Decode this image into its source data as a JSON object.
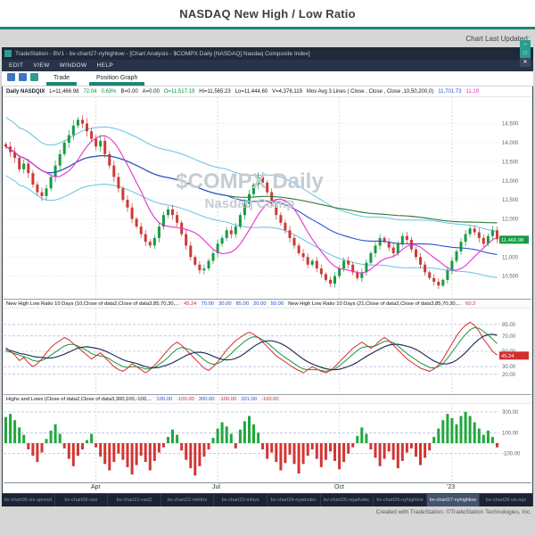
{
  "page": {
    "title": "NASDAQ New High / Low Ratio",
    "last_updated_label": "Chart Last Updated:",
    "credit": "Created with TradeStation. ©TradeStation Technologies, Inc."
  },
  "window": {
    "title": "TradeStation - BV1 - bv-chart27-nyhighlow - [Chart Analysis - $COMPX Daily [NASDAQ] Nasdaq Composite Index]",
    "controls": [
      {
        "name": "minimize",
        "glyph": "–"
      },
      {
        "name": "maximize",
        "glyph": "□"
      },
      {
        "name": "close",
        "glyph": "✕"
      }
    ]
  },
  "menu": {
    "items": [
      "EDIT",
      "VIEW",
      "WINDOW",
      "HELP"
    ]
  },
  "toolbar": {
    "tabs": [
      {
        "label": "Trade"
      },
      {
        "label": "Position Graph"
      }
    ]
  },
  "info_bar": {
    "segments": [
      {
        "text": "Daily NASDQIX",
        "color": "#15181c",
        "bold": true
      },
      {
        "text": "L=11,466.98",
        "color": "#15181c"
      },
      {
        "text": "72.04",
        "color": "#0e8f3e"
      },
      {
        "text": "0.63%",
        "color": "#0e8f3e"
      },
      {
        "text": "B=0.00",
        "color": "#15181c"
      },
      {
        "text": "A=0.00",
        "color": "#15181c"
      },
      {
        "text": "O=11,517.19",
        "color": "#0e8f3e"
      },
      {
        "text": "Hi=11,565.23",
        "color": "#15181c"
      },
      {
        "text": "Lo=11,444.60",
        "color": "#15181c"
      },
      {
        "text": "V=4,376,119",
        "color": "#15181c"
      },
      {
        "text": "Mov Avg 3 Lines ( Close , Close , Close ,10,50,200,0)",
        "color": "#15181c"
      },
      {
        "text": "11,701.73",
        "color": "#2b50d8"
      },
      {
        "text": "11,19",
        "color": "#e531c8"
      }
    ]
  },
  "pane2_header": {
    "segments": [
      {
        "text": "New High Low Ratio 10 Days (10,Close of data2,Close of data3,85,70,30,...",
        "color": "#15181c"
      },
      {
        "text": "45.24",
        "color": "#d03030"
      },
      {
        "text": "70.00",
        "color": "#2b50d8"
      },
      {
        "text": "30.00",
        "color": "#2b50d8"
      },
      {
        "text": "85.00",
        "color": "#2b50d8"
      },
      {
        "text": "20.00",
        "color": "#2b50d8"
      },
      {
        "text": "50.00",
        "color": "#2b50d8"
      },
      {
        "text": "New High Low Ratio 10 Days (21,Close of data2,Close of data3,85,70,30,...",
        "color": "#15181c"
      },
      {
        "text": "60.2",
        "color": "#d03030"
      }
    ]
  },
  "pane3_header": {
    "segments": [
      {
        "text": "Highs and Lows (Close of data2,Close of data3,300,100,-100,...",
        "color": "#15181c"
      },
      {
        "text": "100.00",
        "color": "#2b50d8"
      },
      {
        "text": "-100.00",
        "color": "#d03030"
      },
      {
        "text": "300.00",
        "color": "#2b50d8"
      },
      {
        "text": "-100.00",
        "color": "#d03030"
      },
      {
        "text": "101.00",
        "color": "#2b50d8"
      },
      {
        "text": "-100.00",
        "color": "#d03030"
      }
    ]
  },
  "chart_data": [
    {
      "type": "candlestick",
      "title": "$COMPX Daily - Nasdaq Composite Index",
      "watermark_line1": "$COMPX Daily",
      "watermark_line2": "Nasdaq Comp",
      "x_labels": [
        {
          "label": "Apr",
          "index": 20
        },
        {
          "label": "Jul",
          "index": 47
        },
        {
          "label": "Oct",
          "index": 74
        },
        {
          "label": "'23",
          "index": 99
        }
      ],
      "ylim": [
        10000,
        15100
      ],
      "y_ticks": [
        14500,
        14000,
        13500,
        13000,
        12500,
        12000,
        11500,
        11000,
        10500
      ],
      "closes": [
        13900,
        13750,
        13600,
        13300,
        13450,
        13200,
        12900,
        12700,
        12600,
        12800,
        13100,
        13400,
        13700,
        14000,
        14200,
        14450,
        14600,
        14500,
        14300,
        14100,
        13900,
        14050,
        13700,
        13400,
        13100,
        12800,
        12500,
        12300,
        12000,
        11800,
        11600,
        11400,
        11300,
        11500,
        11800,
        12100,
        12250,
        12100,
        11900,
        11600,
        11300,
        11000,
        10800,
        10650,
        10700,
        10900,
        11100,
        11350,
        11500,
        11700,
        11600,
        11800,
        12100,
        12400,
        12650,
        12900,
        13100,
        12950,
        12700,
        12400,
        12100,
        11900,
        11700,
        11500,
        11300,
        11100,
        11000,
        10800,
        10900,
        10700,
        10550,
        10400,
        10300,
        10500,
        10700,
        10900,
        10800,
        10600,
        10450,
        10600,
        10850,
        11100,
        11300,
        11500,
        11400,
        11250,
        11100,
        11350,
        11550,
        11450,
        11200,
        11000,
        10800,
        10600,
        10450,
        10350,
        10250,
        10400,
        10650,
        10900,
        11150,
        11400,
        11600,
        11750,
        11650,
        11500,
        11350,
        11550,
        11700,
        11467
      ],
      "ma_windows": [
        10,
        50,
        200
      ],
      "ma_colors": [
        "#e531c8",
        "#2b50d8",
        "#3a7d44"
      ],
      "band_color": "#62c3e8",
      "up_color": "#169b42",
      "down_color": "#cc3a35",
      "last_price_label": "11,466.98"
    },
    {
      "type": "line",
      "title": "New High Low Ratio 10 Days",
      "ylim": [
        0,
        100
      ],
      "ref_lines": [
        85,
        70,
        50,
        30,
        20
      ],
      "series": [
        {
          "name": "NH/NL Ratio (10)",
          "color": "#d03030",
          "values": [
            55,
            50,
            45,
            38,
            42,
            35,
            30,
            34,
            40,
            48,
            55,
            60,
            64,
            68,
            65,
            60,
            55,
            50,
            45,
            40,
            44,
            48,
            42,
            36,
            30,
            26,
            24,
            28,
            34,
            30,
            26,
            22,
            26,
            32,
            38,
            45,
            52,
            58,
            62,
            58,
            52,
            46,
            40,
            34,
            28,
            25,
            30,
            36,
            44,
            52,
            58,
            64,
            68,
            72,
            75,
            72,
            68,
            62,
            56,
            50,
            44,
            40,
            36,
            32,
            28,
            25,
            22,
            26,
            30,
            27,
            24,
            22,
            25,
            30,
            36,
            42,
            48,
            54,
            58,
            62,
            58,
            54,
            58,
            64,
            68,
            64,
            58,
            52,
            46,
            40,
            36,
            32,
            28,
            26,
            24,
            27,
            32,
            40,
            50,
            60,
            70,
            78,
            84,
            88,
            84,
            76,
            66,
            58,
            50,
            45
          ]
        },
        {
          "name": "NH/NL Ratio (21)",
          "color": "#18953a",
          "values": [
            50,
            49,
            47,
            45,
            43,
            41,
            38,
            37,
            38,
            41,
            45,
            49,
            53,
            57,
            59,
            59,
            57,
            54,
            51,
            47,
            45,
            44,
            43,
            40,
            36,
            33,
            30,
            29,
            30,
            30,
            29,
            27,
            27,
            29,
            33,
            37,
            42,
            48,
            53,
            55,
            54,
            52,
            48,
            44,
            39,
            35,
            33,
            34,
            37,
            42,
            47,
            53,
            58,
            63,
            67,
            69,
            68,
            65,
            61,
            56,
            51,
            46,
            42,
            38,
            34,
            30,
            27,
            26,
            26,
            26,
            25,
            24,
            25,
            27,
            31,
            36,
            41,
            46,
            51,
            55,
            56,
            56,
            57,
            60,
            63,
            63,
            61,
            57,
            52,
            47,
            43,
            39,
            35,
            32,
            29,
            28,
            30,
            34,
            41,
            49,
            57,
            65,
            72,
            78,
            81,
            80,
            76,
            71,
            66,
            60
          ]
        }
      ],
      "smooth_color": "#27355c",
      "last_label": "45.24"
    },
    {
      "type": "bar",
      "title": "Highs and Lows",
      "ylim": [
        -350,
        350
      ],
      "ref_lines": [
        {
          "v": 300,
          "color": "#9fa9d6"
        },
        {
          "v": 100,
          "color": "#9fa9d6"
        },
        {
          "v": -100,
          "color": "#d89aa0"
        }
      ],
      "up_color": "#1fa83c",
      "down_color": "#d23535",
      "values": [
        250,
        280,
        220,
        150,
        80,
        -60,
        -120,
        -180,
        -90,
        40,
        120,
        180,
        90,
        -50,
        -150,
        -220,
        -120,
        -60,
        30,
        90,
        -40,
        -130,
        -200,
        -260,
        -180,
        -100,
        -160,
        -230,
        -300,
        -210,
        -120,
        -180,
        -260,
        -170,
        -90,
        -40,
        60,
        130,
        80,
        -70,
        -160,
        -240,
        -310,
        -220,
        -130,
        -60,
        50,
        140,
        200,
        160,
        90,
        -50,
        130,
        210,
        260,
        180,
        100,
        -60,
        -150,
        -90,
        -180,
        -260,
        -190,
        -110,
        -200,
        -290,
        -200,
        -120,
        -60,
        -150,
        -230,
        -160,
        -80,
        -170,
        -250,
        -180,
        -100,
        -40,
        70,
        150,
        90,
        -60,
        -140,
        -220,
        -150,
        -80,
        -160,
        -240,
        -170,
        -90,
        -50,
        -130,
        -210,
        -140,
        -70,
        60,
        140,
        220,
        280,
        240,
        180,
        260,
        300,
        260,
        200,
        140,
        80,
        120,
        60,
        -40
      ]
    }
  ],
  "bottom_tabs": {
    "active_index": 8,
    "items": [
      "bv-chart05-vix-spread",
      "bv-chart06-rasi",
      "bv-chart21-rasi2",
      "bv-chart22-mktbrx",
      "bv-chart23-mktvx",
      "bv-chart24-nyadvdec",
      "bv-chart25-nqadvdec",
      "bv-chart26-nyhighlow",
      "bv-chart27-nyhighlow",
      "bv-chart28-vix-sqz"
    ]
  }
}
